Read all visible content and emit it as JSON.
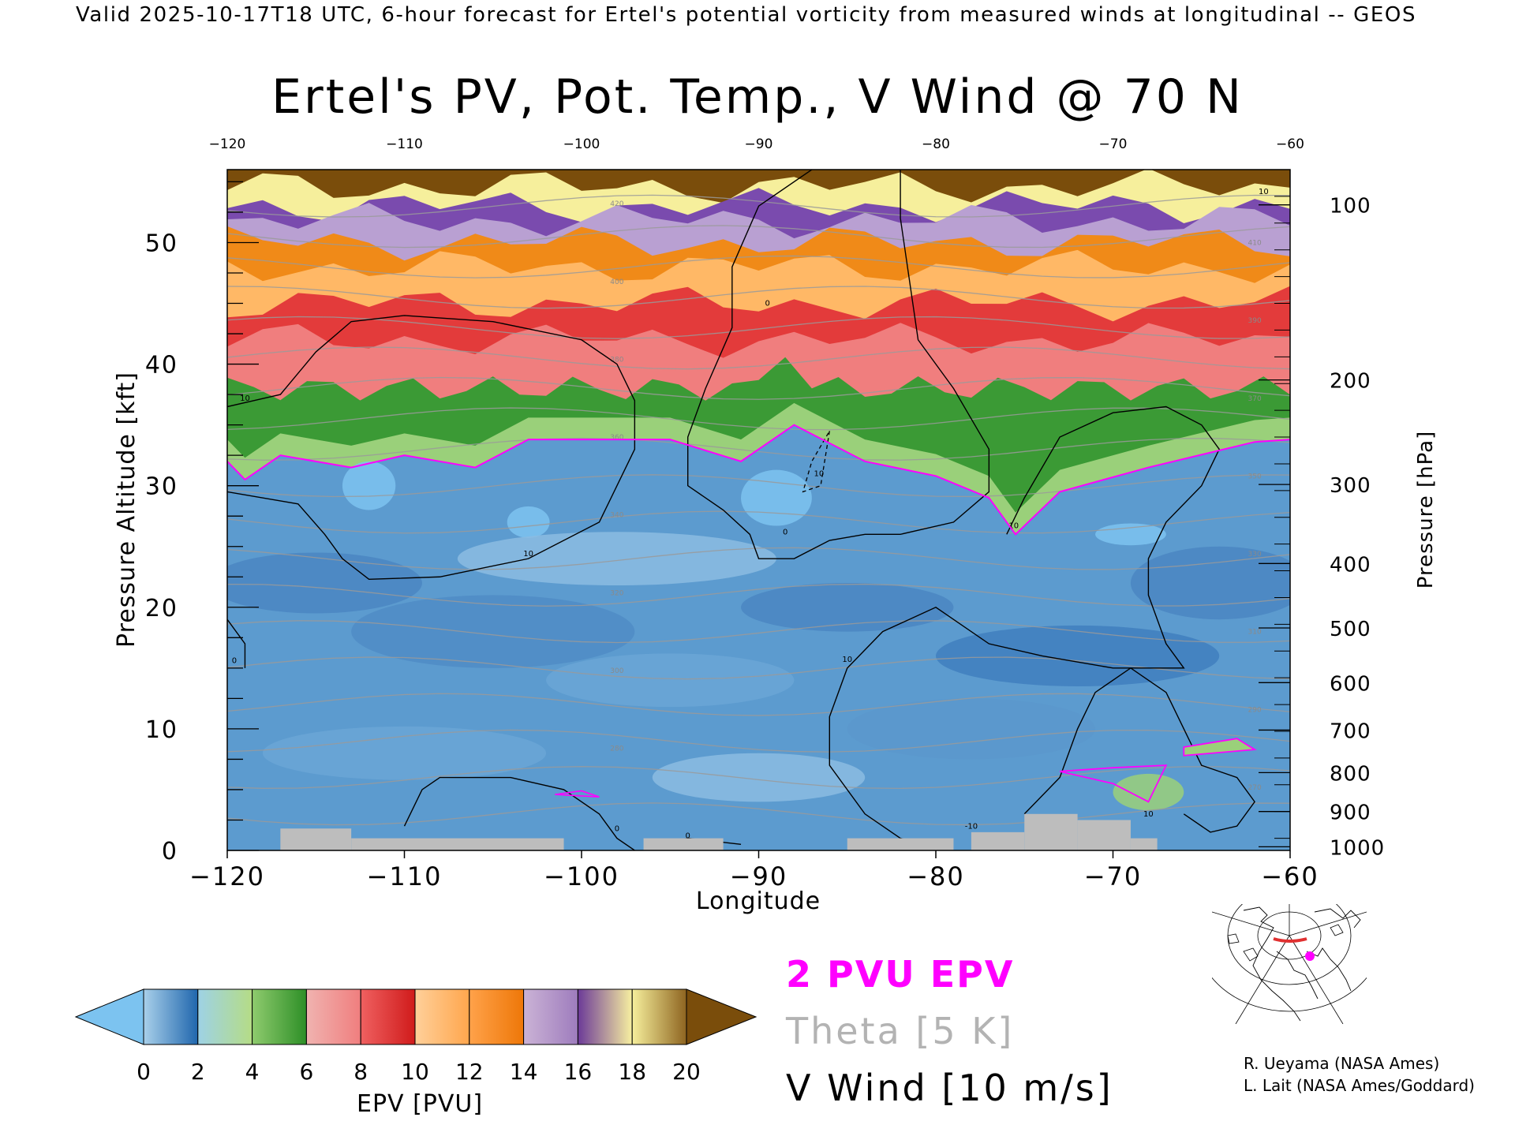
{
  "header": {
    "text": "Valid 2025-10-17T18 UTC, 6-hour forecast for Ertel's potential vorticity from measured winds at longitudinal -- GEOS"
  },
  "chart_data": {
    "type": "heatmap",
    "title": "Ertel's PV, Pot. Temp., V Wind @ 70 N",
    "xlabel": "Longitude",
    "ylabel": "Pressure Altitude [kft]",
    "y2label": "Pressure [hPa]",
    "xlim": [
      -120,
      -60
    ],
    "ylim": [
      0,
      56
    ],
    "x_ticks": [
      -120,
      -110,
      -100,
      -90,
      -80,
      -70,
      -60
    ],
    "x_ticks_top": [
      -120,
      -110,
      -100,
      -90,
      -80,
      -70,
      -60
    ],
    "y_ticks": [
      0,
      10,
      20,
      30,
      40,
      50
    ],
    "pressure_ticks": [
      {
        "label": "100",
        "kft": 53.1
      },
      {
        "label": "200",
        "kft": 38.7
      },
      {
        "label": "300",
        "kft": 30.1
      },
      {
        "label": "400",
        "kft": 23.6
      },
      {
        "label": "500",
        "kft": 18.3
      },
      {
        "label": "600",
        "kft": 13.8
      },
      {
        "label": "700",
        "kft": 9.9
      },
      {
        "label": "800",
        "kft": 6.4
      },
      {
        "label": "900",
        "kft": 3.2
      },
      {
        "label": "1000",
        "kft": 0.3
      }
    ],
    "grid": false,
    "colorbar": {
      "label": "EPV [PVU]",
      "ticks": [
        0,
        2,
        4,
        6,
        8,
        10,
        12,
        14,
        16,
        18,
        20
      ],
      "extend": "both",
      "under_color": "#7cc3f0",
      "over_color": "#7a4d0b",
      "bins": [
        {
          "from": 0,
          "to": 2,
          "colors": [
            "#a9d0ea",
            "#1f66ad"
          ]
        },
        {
          "from": 2,
          "to": 4,
          "colors": [
            "#9ed2e6",
            "#b5dc85"
          ]
        },
        {
          "from": 4,
          "to": 6,
          "colors": [
            "#8fcb6e",
            "#2d8f27"
          ]
        },
        {
          "from": 6,
          "to": 8,
          "colors": [
            "#f0b3b0",
            "#f07e7e"
          ]
        },
        {
          "from": 8,
          "to": 10,
          "colors": [
            "#ef6060",
            "#d01b1b"
          ]
        },
        {
          "from": 10,
          "to": 12,
          "colors": [
            "#ffd09a",
            "#ffa64d"
          ]
        },
        {
          "from": 12,
          "to": 14,
          "colors": [
            "#ffa24a",
            "#ee7708"
          ]
        },
        {
          "from": 14,
          "to": 16,
          "colors": [
            "#cbb3d6",
            "#9e7cbd"
          ]
        },
        {
          "from": 16,
          "to": 18,
          "colors": [
            "#6c3a98",
            "#f8f0a0"
          ]
        },
        {
          "from": 18,
          "to": 20,
          "colors": [
            "#f6ef9c",
            "#8e6420"
          ]
        }
      ]
    },
    "layers": [
      {
        "name": "pv_boundary_2pvu",
        "kft_by_lon": [
          [
            -120,
            32.0
          ],
          [
            -119,
            30.5
          ],
          [
            -117,
            32.5
          ],
          [
            -113,
            31.5
          ],
          [
            -110,
            32.5
          ],
          [
            -106,
            31.5
          ],
          [
            -103,
            33.8
          ],
          [
            -95,
            33.8
          ],
          [
            -91,
            32.0
          ],
          [
            -88,
            35.0
          ],
          [
            -84,
            32.0
          ],
          [
            -80,
            30.8
          ],
          [
            -77,
            29.0
          ],
          [
            -75.5,
            26.0
          ],
          [
            -73,
            29.5
          ],
          [
            -68,
            31.5
          ],
          [
            -62,
            33.6
          ],
          [
            -60,
            33.8
          ]
        ]
      },
      {
        "name": "blue_top_kft",
        "value": 33.5
      },
      {
        "name": "green_top_kft",
        "value": 38.0
      },
      {
        "name": "red_top_kft",
        "value": 45.0
      },
      {
        "name": "orange_top_kft",
        "value": 50.0
      },
      {
        "name": "purple_top_kft",
        "value": 53.0
      }
    ],
    "theta_contour_labels": [
      "420",
      "410",
      "400",
      "390",
      "380",
      "370",
      "360",
      "350",
      "340",
      "330",
      "320",
      "310",
      "300",
      "290",
      "280",
      "270"
    ],
    "vwind_contour_labels": [
      "0",
      "10",
      "-10"
    ],
    "terrain": [
      {
        "lon_from": -117,
        "lon_to": -113,
        "kft": 1.8
      },
      {
        "lon_from": -113,
        "lon_to": -101,
        "kft": 1.0
      },
      {
        "lon_from": -96.5,
        "lon_to": -92,
        "kft": 1.0
      },
      {
        "lon_from": -85,
        "lon_to": -79,
        "kft": 1.0
      },
      {
        "lon_from": -78,
        "lon_to": -75,
        "kft": 1.5
      },
      {
        "lon_from": -75,
        "lon_to": -72,
        "kft": 3.0
      },
      {
        "lon_from": -72,
        "lon_to": -69,
        "kft": 2.5
      },
      {
        "lon_from": -69,
        "lon_to": -67.5,
        "kft": 1.0
      }
    ]
  },
  "legend": {
    "pv_label": "2 PVU EPV",
    "theta_label": "Theta [5 K]",
    "wind_label": "V Wind [10 m/s]",
    "pv_color": "#ff00ff",
    "theta_color": "#b3b3b3",
    "wind_color": "#000000"
  },
  "credits": {
    "line1": "R. Ueyama (NASA Ames)",
    "line2": "L. Lait (NASA Ames/Goddard)"
  },
  "inset_map": {
    "icon": "polar-stereographic-map-icon",
    "track_color": "#e03030",
    "marker_color": "#ff00ff"
  }
}
